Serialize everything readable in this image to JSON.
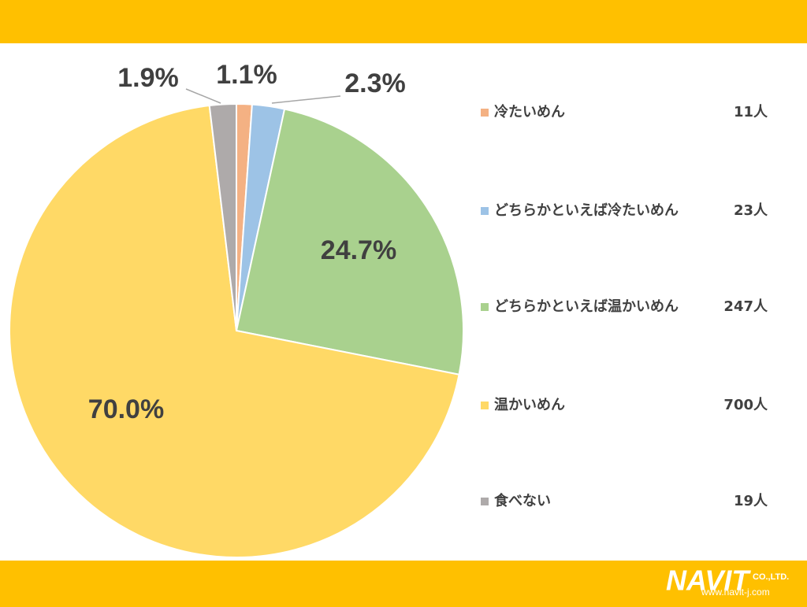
{
  "chart_data": {
    "type": "pie",
    "categories": [
      "冷たいめん",
      "どちらかといえば冷たいめん",
      "どちらかといえば温かいめん",
      "温かいめん",
      "食べない"
    ],
    "values": [
      1.1,
      2.3,
      24.7,
      70.0,
      1.9
    ],
    "value_labels": [
      "1.1%",
      "2.3%",
      "24.7%",
      "70.0%",
      "1.9%"
    ],
    "count_labels": [
      "11人",
      "23人",
      "247人",
      "700人",
      "19人"
    ],
    "colors": [
      "#f4b183",
      "#9dc3e6",
      "#a9d18e",
      "#ffd966",
      "#aeaaaa"
    ]
  },
  "footer": {
    "logo": "NAVIT",
    "company": "CO.,LTD.",
    "url": "www.navit-j.com"
  }
}
